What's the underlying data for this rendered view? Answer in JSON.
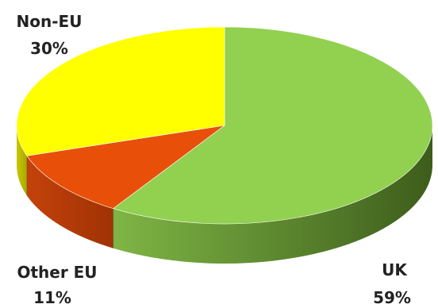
{
  "chart_data": {
    "type": "pie",
    "categories": [
      "UK",
      "Other EU",
      "Non-EU"
    ],
    "values": [
      59,
      11,
      30
    ],
    "value_labels": [
      "59%",
      "11%",
      "30%"
    ],
    "colors": {
      "UK": "#92d050",
      "Other EU": "#e8500a",
      "Non-EU": "#ffff00"
    },
    "side_colors": {
      "UK": "#5e8a2e",
      "Other EU": "#a83a08",
      "Non-EU": "#b8b800"
    },
    "style": "3d",
    "legend": "none"
  }
}
